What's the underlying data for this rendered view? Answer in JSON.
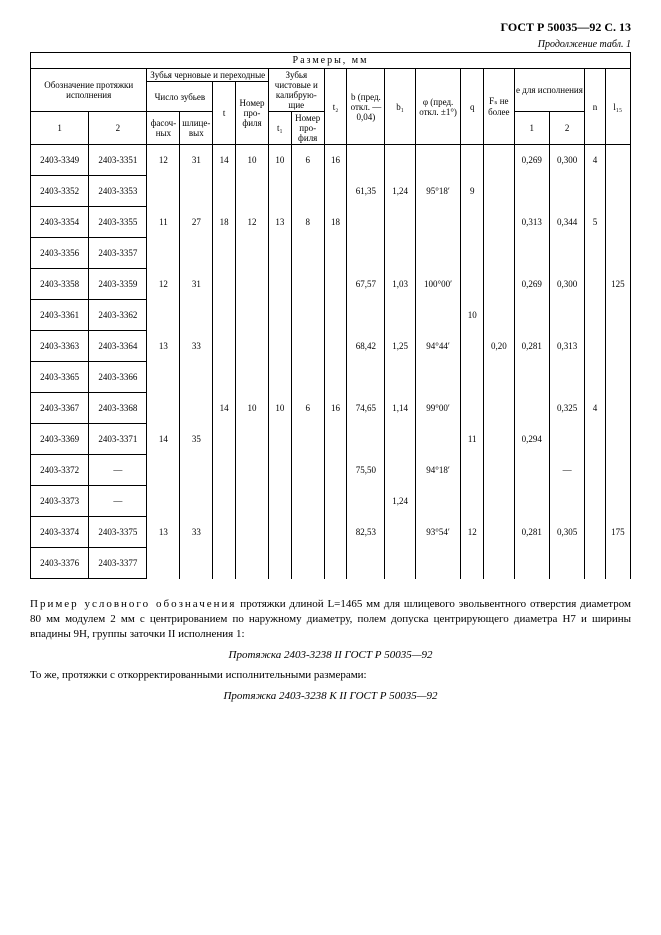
{
  "header": {
    "doc_id": "ГОСТ Р 50035—92 С. 13",
    "continuation": "Продолжение табл. 1",
    "table_title": "Размеры, мм"
  },
  "columns": {
    "col_a": "Обозначение протяжки исполнения",
    "col_a1": "1",
    "col_a2": "2",
    "col_b": "Зубья черновые и переходные",
    "col_b_sub": "Число зубьев",
    "col_b_fas": "фасоч­ных",
    "col_b_shl": "шлице­вых",
    "col_t": "t",
    "col_np": "Номер про­филя",
    "col_c": "Зубья чистовые и калибрую­щие",
    "col_t1": "t₁",
    "col_np1": "Номер про­филя",
    "col_t2": "t₂",
    "col_bpred": "b (пред. откл. —0,04)",
    "col_b1": "b₁",
    "col_phi": "φ (пред. откл. ±1°)",
    "col_q": "q",
    "col_fs": "Fₛ не более",
    "col_e": "e для испол­нения",
    "col_e1": "1",
    "col_e2": "2",
    "col_n": "n",
    "col_lts": "l₁₅"
  },
  "rows": [
    {
      "a1": "2403-3349",
      "a2": "2403-3351",
      "fas": "12",
      "shl": "31",
      "t": "14",
      "np": "10",
      "t1": "10",
      "np1": "6",
      "t2": "16",
      "b": "",
      "b1": "",
      "phi": "",
      "q": "",
      "fs": "",
      "e1": "0,269",
      "e2": "0,300",
      "n": "4",
      "lts": ""
    },
    {
      "a1": "2403-3352",
      "a2": "2403-3353",
      "fas": "",
      "shl": "",
      "t": "",
      "np": "",
      "t1": "",
      "np1": "",
      "t2": "",
      "b": "61,35",
      "b1": "1,24",
      "phi": "95°18′",
      "q": "9",
      "fs": "",
      "e1": "",
      "e2": "",
      "n": "",
      "lts": ""
    },
    {
      "a1": "2403-3354",
      "a2": "2403-3355",
      "fas": "11",
      "shl": "27",
      "t": "18",
      "np": "12",
      "t1": "13",
      "np1": "8",
      "t2": "18",
      "b": "",
      "b1": "",
      "phi": "",
      "q": "",
      "fs": "",
      "e1": "0,313",
      "e2": "0,344",
      "n": "5",
      "lts": ""
    },
    {
      "a1": "2403-3356",
      "a2": "2403-3357",
      "fas": "",
      "shl": "",
      "t": "",
      "np": "",
      "t1": "",
      "np1": "",
      "t2": "",
      "b": "",
      "b1": "",
      "phi": "",
      "q": "",
      "fs": "",
      "e1": "",
      "e2": "",
      "n": "",
      "lts": ""
    },
    {
      "a1": "2403-3358",
      "a2": "2403-3359",
      "fas": "12",
      "shl": "31",
      "t": "",
      "np": "",
      "t1": "",
      "np1": "",
      "t2": "",
      "b": "67,57",
      "b1": "1,03",
      "phi": "100°00′",
      "q": "",
      "fs": "",
      "e1": "0,269",
      "e2": "0,300",
      "n": "",
      "lts": "125"
    },
    {
      "a1": "2403-3361",
      "a2": "2403-3362",
      "fas": "",
      "shl": "",
      "t": "",
      "np": "",
      "t1": "",
      "np1": "",
      "t2": "",
      "b": "",
      "b1": "",
      "phi": "",
      "q": "10",
      "fs": "",
      "e1": "",
      "e2": "",
      "n": "",
      "lts": ""
    },
    {
      "a1": "2403-3363",
      "a2": "2403-3364",
      "fas": "13",
      "shl": "33",
      "t": "",
      "np": "",
      "t1": "",
      "np1": "",
      "t2": "",
      "b": "68,42",
      "b1": "1,25",
      "phi": "94°44′",
      "q": "",
      "fs": "0,20",
      "e1": "0,281",
      "e2": "0,313",
      "n": "",
      "lts": ""
    },
    {
      "a1": "2403-3365",
      "a2": "2403-3366",
      "fas": "",
      "shl": "",
      "t": "",
      "np": "",
      "t1": "",
      "np1": "",
      "t2": "",
      "b": "",
      "b1": "",
      "phi": "",
      "q": "",
      "fs": "",
      "e1": "",
      "e2": "",
      "n": "",
      "lts": ""
    },
    {
      "a1": "2403-3367",
      "a2": "2403-3368",
      "fas": "",
      "shl": "",
      "t": "14",
      "np": "10",
      "t1": "10",
      "np1": "6",
      "t2": "16",
      "b": "74,65",
      "b1": "1,14",
      "phi": "99°00′",
      "q": "",
      "fs": "",
      "e1": "",
      "e2": "0,325",
      "n": "4",
      "lts": ""
    },
    {
      "a1": "2403-3369",
      "a2": "2403-3371",
      "fas": "14",
      "shl": "35",
      "t": "",
      "np": "",
      "t1": "",
      "np1": "",
      "t2": "",
      "b": "",
      "b1": "",
      "phi": "",
      "q": "11",
      "fs": "",
      "e1": "0,294",
      "e2": "",
      "n": "",
      "lts": ""
    },
    {
      "a1": "2403-3372",
      "a2": "—",
      "fas": "",
      "shl": "",
      "t": "",
      "np": "",
      "t1": "",
      "np1": "",
      "t2": "",
      "b": "75,50",
      "b1": "",
      "phi": "94°18′",
      "q": "",
      "fs": "",
      "e1": "",
      "e2": "—",
      "n": "",
      "lts": ""
    },
    {
      "a1": "2403-3373",
      "a2": "—",
      "fas": "",
      "shl": "",
      "t": "",
      "np": "",
      "t1": "",
      "np1": "",
      "t2": "",
      "b": "",
      "b1": "1,24",
      "phi": "",
      "q": "",
      "fs": "",
      "e1": "",
      "e2": "",
      "n": "",
      "lts": ""
    },
    {
      "a1": "2403-3374",
      "a2": "2403-3375",
      "fas": "13",
      "shl": "33",
      "t": "",
      "np": "",
      "t1": "",
      "np1": "",
      "t2": "",
      "b": "82,53",
      "b1": "",
      "phi": "93°54′",
      "q": "12",
      "fs": "",
      "e1": "0,281",
      "e2": "0,305",
      "n": "",
      "lts": "175"
    },
    {
      "a1": "2403-3376",
      "a2": "2403-3377",
      "fas": "",
      "shl": "",
      "t": "",
      "np": "",
      "t1": "",
      "np1": "",
      "t2": "",
      "b": "",
      "b1": "",
      "phi": "",
      "q": "",
      "fs": "",
      "e1": "",
      "e2": "",
      "n": "",
      "lts": ""
    }
  ],
  "footer": {
    "p1_prefix": "Пример условного обозначения",
    "p1_rest": " протяжки длиной L=1465 мм для шлицевого эвольвентного отверстия диаметром 80 мм модулем 2 мм с центрированием по наружному диаметру, полем допуска центрирующего диаметра H7 и ширины впадины 9H, группы заточки II исполнения 1:",
    "ex1": "Протяжка 2403-3238 II ГОСТ Р 50035—92",
    "p2": "То же, протяжки с откорректированными исполнительными размерами:",
    "ex2": "Протяжка 2403-3238 К II ГОСТ Р 50035—92"
  }
}
